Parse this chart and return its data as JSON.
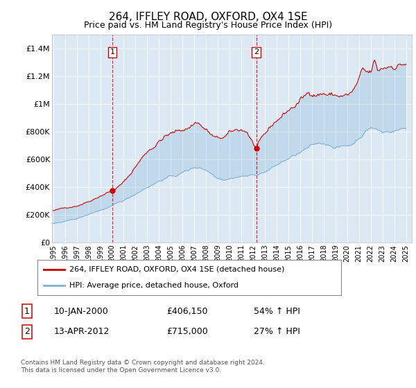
{
  "title": "264, IFFLEY ROAD, OXFORD, OX4 1SE",
  "subtitle": "Price paid vs. HM Land Registry's House Price Index (HPI)",
  "ylabel_ticks": [
    "£0",
    "£200K",
    "£400K",
    "£600K",
    "£800K",
    "£1M",
    "£1.2M",
    "£1.4M"
  ],
  "ytick_values": [
    0,
    200000,
    400000,
    600000,
    800000,
    1000000,
    1200000,
    1400000
  ],
  "ylim": [
    0,
    1500000
  ],
  "xlim_start": 1994.9,
  "xlim_end": 2025.5,
  "plot_bg": "#dce9f5",
  "line_color_red": "#cc0000",
  "line_color_blue": "#7fb3d3",
  "vline1_x": 2000.04,
  "vline2_x": 2012.28,
  "vline_color": "#cc0000",
  "legend_label_red": "264, IFFLEY ROAD, OXFORD, OX4 1SE (detached house)",
  "legend_label_blue": "HPI: Average price, detached house, Oxford",
  "sale1_date": "10-JAN-2000",
  "sale1_price": "£406,150",
  "sale1_hpi": "54% ↑ HPI",
  "sale2_date": "13-APR-2012",
  "sale2_price": "£715,000",
  "sale2_hpi": "27% ↑ HPI",
  "footer": "Contains HM Land Registry data © Crown copyright and database right 2024.\nThis data is licensed under the Open Government Licence v3.0."
}
